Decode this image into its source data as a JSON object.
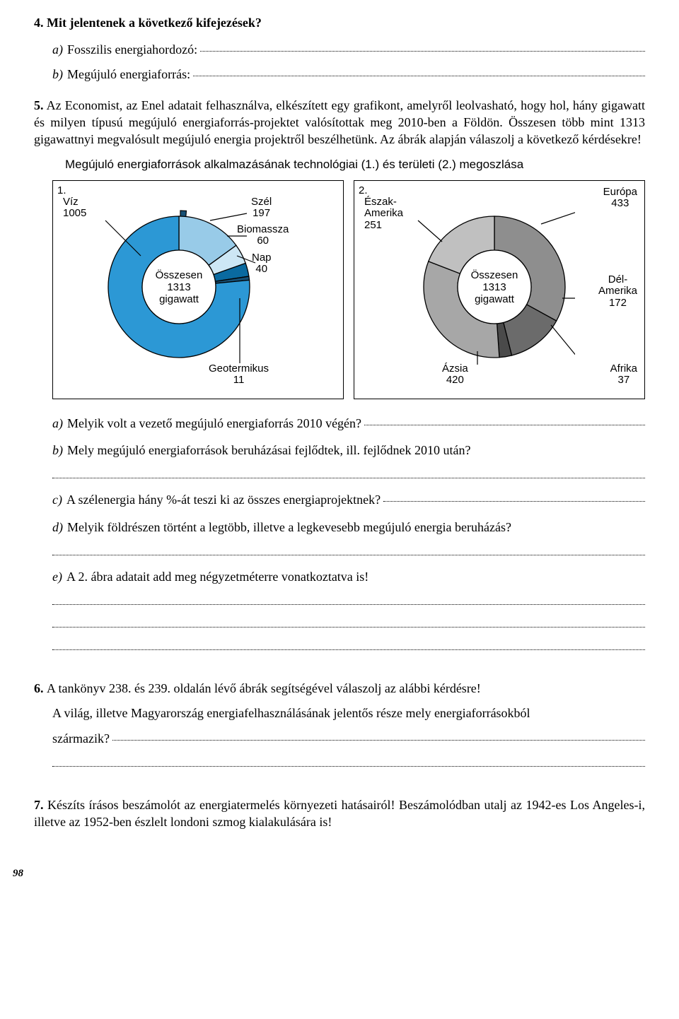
{
  "q4": {
    "number": "4.",
    "text": "Mit jelentenek a következő kifejezések?",
    "a_label": "a)",
    "a_text": "Fosszilis energiahordozó:",
    "b_label": "b)",
    "b_text": "Megújuló energiaforrás:"
  },
  "q5": {
    "number": "5.",
    "intro": "Az Economist, az Enel adatait felhasználva, elkészített egy grafikont, amelyről leolvasható, hogy hol, hány gigawatt és milyen típusú megújuló energiaforrás-projektet valósítottak meg 2010-ben a Földön. Összesen több mint 1313 gigawattnyi megvalósult megújuló energia projektről beszélhetünk. Az ábrák alapján válaszolj a következő kérdésekre!",
    "chart_caption": "Megújuló energiaforrások alkalmazásának technológiai (1.) és területi (2.) megoszlása",
    "chart1": {
      "number": "1.",
      "center_l1": "Összesen",
      "center_l2": "1313",
      "center_l3": "gigawatt",
      "slices": [
        {
          "label": "Víz",
          "value": 1005,
          "color": "#2c98d5",
          "angle": 275.5
        },
        {
          "label": "Szél",
          "value": 197,
          "color": "#98cbe8",
          "angle": 54.0
        },
        {
          "label": "Biomassza",
          "value": 60,
          "color": "#cde7f5",
          "angle": 16.4
        },
        {
          "label": "Nap",
          "value": 40,
          "color": "#0a6aa0",
          "angle": 11.0
        },
        {
          "label": "Geotermikus",
          "value": 11,
          "color": "#175075",
          "angle": 3.1
        }
      ]
    },
    "chart2": {
      "number": "2.",
      "center_l1": "Összesen",
      "center_l2": "1313",
      "center_l3": "gigawatt",
      "slices": [
        {
          "label": "Európa",
          "value": 433,
          "color": "#8e8e8e",
          "angle": 118.7
        },
        {
          "label": "Dél-\nAmerika",
          "value": 172,
          "color": "#6b6b6b",
          "angle": 47.1
        },
        {
          "label": "Afrika",
          "value": 37,
          "color": "#4a4a4a",
          "angle": 10.2
        },
        {
          "label": "Ázsia",
          "value": 420,
          "color": "#a7a7a7",
          "angle": 115.2
        },
        {
          "label": "Észak-\nAmerika",
          "value": 251,
          "color": "#c0c0c0",
          "angle": 68.8
        }
      ],
      "lbl_europa": "Európa",
      "val_europa": "433",
      "lbl_delam1": "Dél-",
      "lbl_delam2": "Amerika",
      "val_delam": "172",
      "lbl_afrika": "Afrika",
      "val_afrika": "37",
      "lbl_azsia": "Ázsia",
      "val_azsia": "420",
      "lbl_eszak1": "Észak-",
      "lbl_eszak2": "Amerika",
      "val_eszak": "251"
    },
    "a_label": "a)",
    "a_text": "Melyik volt a vezető megújuló energiaforrás 2010 végén?",
    "b_label": "b)",
    "b_text": "Mely megújuló energiaforrások beruházásai fejlődtek, ill. fejlődnek 2010 után?",
    "c_label": "c)",
    "c_text": "A szélenergia hány %-át teszi ki az összes energiaprojektnek?",
    "d_label": "d)",
    "d_text": "Melyik földrészen történt a legtöbb, illetve a legkevesebb megújuló energia beruházás?",
    "e_label": "e)",
    "e_text": "A 2. ábra adatait add meg négyzetméterre vonatkoztatva is!"
  },
  "q6": {
    "number": "6.",
    "text": "A tankönyv 238. és 239. oldalán lévő ábrák segítségével válaszolj az alábbi kérdésre!",
    "body1": "A világ, illetve Magyarország energiafelhasználásának jelentős része mely energiaforrásokból",
    "body2": "származik?"
  },
  "q7": {
    "number": "7.",
    "text": "Készíts írásos beszámolót az energiatermelés környezeti hatásairól! Beszámolódban utalj az 1942-es Los Angeles-i, illetve az 1952-ben észlelt londoni szmog kialakulására is!"
  },
  "pagenum": "98",
  "chart1_labels": {
    "viz": "Víz",
    "viz_v": "1005",
    "szel": "Szél",
    "szel_v": "197",
    "bio": "Biomassza",
    "bio_v": "60",
    "nap": "Nap",
    "nap_v": "40",
    "geo": "Geotermikus",
    "geo_v": "11"
  }
}
